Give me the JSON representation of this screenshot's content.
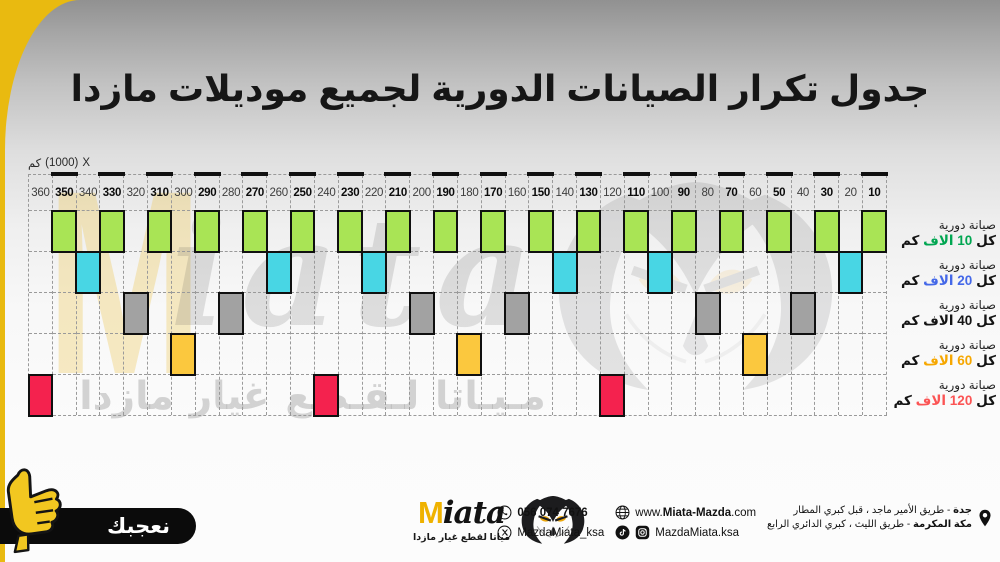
{
  "page": {
    "title": "جدول تكرار الصيانات الدورية لجميع موديلات مازدا"
  },
  "axis": {
    "unit_label_parts": [
      "كم",
      "(1000)",
      "X"
    ],
    "unit_label_meaning": "X (1000) كم"
  },
  "chart_data": {
    "type": "heatmap",
    "title": "جدول تكرار الصيانات الدورية لجميع موديلات مازدا",
    "x_axis": {
      "unit_label": "X (1000) كم",
      "columns": [
        360,
        350,
        340,
        330,
        320,
        310,
        300,
        290,
        280,
        270,
        260,
        250,
        240,
        230,
        220,
        210,
        200,
        190,
        180,
        170,
        160,
        150,
        140,
        130,
        120,
        110,
        100,
        90,
        80,
        70,
        60,
        50,
        40,
        30,
        20,
        10
      ],
      "emphasized_columns": [
        350,
        330,
        310,
        290,
        270,
        250,
        230,
        210,
        190,
        170,
        150,
        130,
        110,
        90,
        70,
        50,
        30,
        10
      ]
    },
    "rows": [
      {
        "name": "صيانة دورية كل 10 الاف كم",
        "interval_thousand_km": 10,
        "block_color": "#a9e455",
        "marked_columns": [
          350,
          330,
          310,
          290,
          270,
          250,
          230,
          210,
          190,
          170,
          150,
          130,
          110,
          90,
          70,
          50,
          30,
          10
        ]
      },
      {
        "name": "صيانة دورية كل 20 الاف كم",
        "interval_thousand_km": 20,
        "block_color": "#48d6e4",
        "marked_columns": [
          340,
          260,
          220,
          140,
          100,
          20
        ]
      },
      {
        "name": "صيانة دورية كل 40 الاف كم",
        "interval_thousand_km": 40,
        "block_color": "#a2a2a2",
        "marked_columns": [
          320,
          280,
          200,
          160,
          80,
          40
        ]
      },
      {
        "name": "صيانة دورية كل 60 الاف كم",
        "interval_thousand_km": 60,
        "block_color": "#fbc83e",
        "marked_columns": [
          300,
          180,
          60
        ]
      },
      {
        "name": "صيانة دورية كل 120 الاف كم",
        "interval_thousand_km": 120,
        "block_color": "#f4224e",
        "marked_columns": [
          360,
          240,
          120
        ]
      }
    ],
    "legend_position": "right",
    "grid": "dashed"
  },
  "legend": {
    "items": [
      {
        "line1": "صيانة دورية",
        "prefix": "كل",
        "value": "10",
        "unit_word": "الاف",
        "suffix": "كم",
        "color": "#00a651"
      },
      {
        "line1": "صيانة دورية",
        "prefix": "كل",
        "value": "20",
        "unit_word": "الاف",
        "suffix": "كم",
        "color": "#4468e8"
      },
      {
        "line1": "صيانة دورية",
        "prefix": "كل",
        "value": "40",
        "unit_word": "الاف",
        "suffix": "كم",
        "color": "#141414"
      },
      {
        "line1": "صيانة دورية",
        "prefix": "كل",
        "value": "60",
        "unit_word": "الاف",
        "suffix": "كم",
        "color": "#f6a700"
      },
      {
        "line1": "صيانة دورية",
        "prefix": "كل",
        "value": "120",
        "unit_word": "الاف",
        "suffix": "كم",
        "color": "#fb5454"
      }
    ]
  },
  "like_badge": {
    "label": "نعجبك"
  },
  "brand": {
    "logo_m": "M",
    "logo_rest": "iata",
    "tagline": "مياتا لقطع غيار مازدا"
  },
  "watermark": {
    "logo_m": "M",
    "logo_rest": "iata",
    "arabic": "مـيـاتا لـقـطع غيار مازدا"
  },
  "contacts": {
    "phone": "056 074 7676",
    "x_handle": "MazdaMiata_ksa",
    "website_prefix": "www.",
    "website_bold": "Miata-Mazda",
    "website_suffix": ".com",
    "social_handle": "MazdaMiata.ksa",
    "address1_bold": "جدة",
    "address1_rest": "- طريق الأمير ماجد ، قبل كبري المطار",
    "address2_bold": "مكة المكرمة",
    "address2_rest": "- طريق الليث ، كبري الدائري الرابع",
    "icons": [
      "whatsapp-icon",
      "x-icon",
      "globe-icon",
      "tiktok-icon",
      "instagram-icon",
      "location-pin-icon"
    ]
  },
  "colors": {
    "brand_yellow": "#e9ba10",
    "block_border": "#101010",
    "grid_line": "#9a9a9a"
  }
}
